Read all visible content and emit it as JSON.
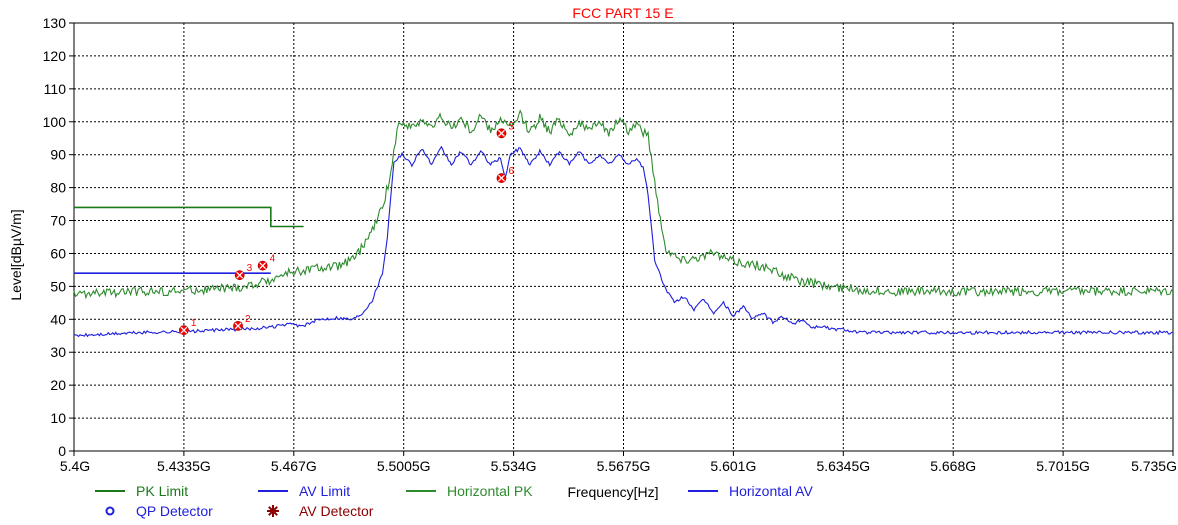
{
  "chart_data": {
    "type": "line",
    "title": "FCC PART 15 E",
    "xlabel": "Frequency[Hz]",
    "ylabel": "Level[dBµV/m]",
    "xlim": [
      5.4,
      5.735
    ],
    "ylim": [
      0,
      130
    ],
    "grid": true,
    "x_tick_labels": [
      "5.4G",
      "5.4335G",
      "5.467G",
      "5.5005G",
      "5.534G",
      "5.5675G",
      "5.601G",
      "5.6345G",
      "5.668G",
      "5.7015G",
      "5.735G"
    ],
    "y_tick_labels": [
      "0",
      "10",
      "20",
      "30",
      "40",
      "50",
      "60",
      "70",
      "80",
      "90",
      "100",
      "110",
      "120",
      "130"
    ],
    "x_units": "GHz",
    "series": [
      {
        "name": "PK Limit",
        "color": "#1a7a1a",
        "x": [
          5.4,
          5.46,
          5.46,
          5.47
        ],
        "y": [
          74,
          74,
          68.2,
          68.2
        ]
      },
      {
        "name": "AV Limit",
        "color": "#1f1fdd",
        "x": [
          5.4,
          5.46
        ],
        "y": [
          54,
          54
        ]
      },
      {
        "name": "Horizontal PK",
        "color": "#2e8b2e",
        "x": [
          5.4,
          5.41,
          5.42,
          5.43,
          5.44,
          5.45,
          5.455,
          5.46,
          5.465,
          5.47,
          5.475,
          5.48,
          5.485,
          5.488,
          5.491,
          5.494,
          5.497,
          5.4985,
          5.5,
          5.503,
          5.506,
          5.509,
          5.512,
          5.515,
          5.518,
          5.521,
          5.524,
          5.527,
          5.53,
          5.533,
          5.536,
          5.539,
          5.542,
          5.545,
          5.548,
          5.551,
          5.554,
          5.557,
          5.56,
          5.563,
          5.566,
          5.569,
          5.5715,
          5.5735,
          5.575,
          5.577,
          5.58,
          5.585,
          5.59,
          5.595,
          5.6,
          5.605,
          5.61,
          5.615,
          5.62,
          5.625,
          5.63,
          5.635,
          5.64,
          5.65,
          5.66,
          5.67,
          5.68,
          5.69,
          5.7,
          5.71,
          5.72,
          5.735
        ],
        "y": [
          47.5,
          48,
          48.5,
          48.5,
          49,
          49.5,
          50.5,
          52,
          54,
          55,
          55.5,
          56,
          58,
          62,
          67,
          74,
          86,
          99,
          100,
          98,
          101,
          98,
          102,
          98,
          101,
          97,
          102,
          97,
          101,
          98,
          102,
          97,
          101,
          97,
          101,
          96,
          100,
          97,
          101,
          96,
          101,
          97,
          100,
          97,
          96,
          82,
          62,
          58,
          59,
          60,
          58,
          57,
          56,
          54,
          52,
          51,
          50,
          49.5,
          49,
          48.5,
          48.5,
          48.5,
          48.5,
          48.5,
          48.5,
          48.5,
          48.5,
          48.5
        ]
      },
      {
        "name": "Horizontal AV",
        "color": "#1f1fdd",
        "x": [
          5.4,
          5.41,
          5.42,
          5.43,
          5.44,
          5.45,
          5.46,
          5.465,
          5.47,
          5.475,
          5.48,
          5.485,
          5.488,
          5.491,
          5.494,
          5.4955,
          5.4975,
          5.5,
          5.503,
          5.506,
          5.509,
          5.512,
          5.515,
          5.518,
          5.521,
          5.524,
          5.527,
          5.53,
          5.5315,
          5.533,
          5.536,
          5.539,
          5.542,
          5.545,
          5.548,
          5.551,
          5.554,
          5.557,
          5.56,
          5.563,
          5.566,
          5.569,
          5.5715,
          5.5735,
          5.575,
          5.577,
          5.58,
          5.583,
          5.586,
          5.589,
          5.592,
          5.595,
          5.598,
          5.601,
          5.604,
          5.607,
          5.61,
          5.613,
          5.616,
          5.619,
          5.622,
          5.625,
          5.628,
          5.631,
          5.6345,
          5.64,
          5.65,
          5.66,
          5.67,
          5.68,
          5.7,
          5.72,
          5.735
        ],
        "y": [
          35,
          35.5,
          36,
          36.2,
          36.5,
          37,
          37.5,
          38.5,
          38,
          40,
          40.5,
          40,
          42,
          46,
          54,
          65,
          88,
          90,
          87,
          92,
          87,
          92,
          87,
          91,
          87,
          91,
          87,
          89,
          83,
          90,
          92,
          87,
          91,
          87,
          91,
          87,
          91,
          87,
          90,
          87,
          90,
          87,
          89,
          86,
          78,
          58,
          50,
          45,
          47,
          43,
          46,
          42,
          45,
          41,
          44,
          40,
          42,
          39,
          41,
          38.5,
          40,
          37.5,
          38,
          37,
          37,
          36,
          36,
          36,
          36,
          36,
          36,
          36,
          36
        ]
      }
    ],
    "markers": [
      {
        "label": "1",
        "x": 5.4335,
        "y": 36.7
      },
      {
        "label": "2",
        "x": 5.45,
        "y": 38
      },
      {
        "label": "3",
        "x": 5.4505,
        "y": 53.4
      },
      {
        "label": "4",
        "x": 5.4575,
        "y": 56.3
      },
      {
        "label": "5",
        "x": 5.5303,
        "y": 96.5
      },
      {
        "label": "6",
        "x": 5.5303,
        "y": 82.9
      }
    ],
    "legend": [
      {
        "label": "PK Limit",
        "color": "#1a7a1a",
        "symbol": "line"
      },
      {
        "label": "AV Limit",
        "color": "#1f1fdd",
        "symbol": "line"
      },
      {
        "label": "Horizontal PK",
        "color": "#2e8b2e",
        "symbol": "line"
      },
      {
        "label": "Horizontal AV",
        "color": "#1f1fdd",
        "symbol": "line"
      },
      {
        "label": "QP Detector",
        "color": "#1f1fdd",
        "symbol": "circle"
      },
      {
        "label": "AV Detector",
        "color": "#8b0000",
        "symbol": "star"
      }
    ],
    "legend_position": "bottom",
    "marker_color": "#ff0000",
    "background_color": "#ffffff"
  }
}
